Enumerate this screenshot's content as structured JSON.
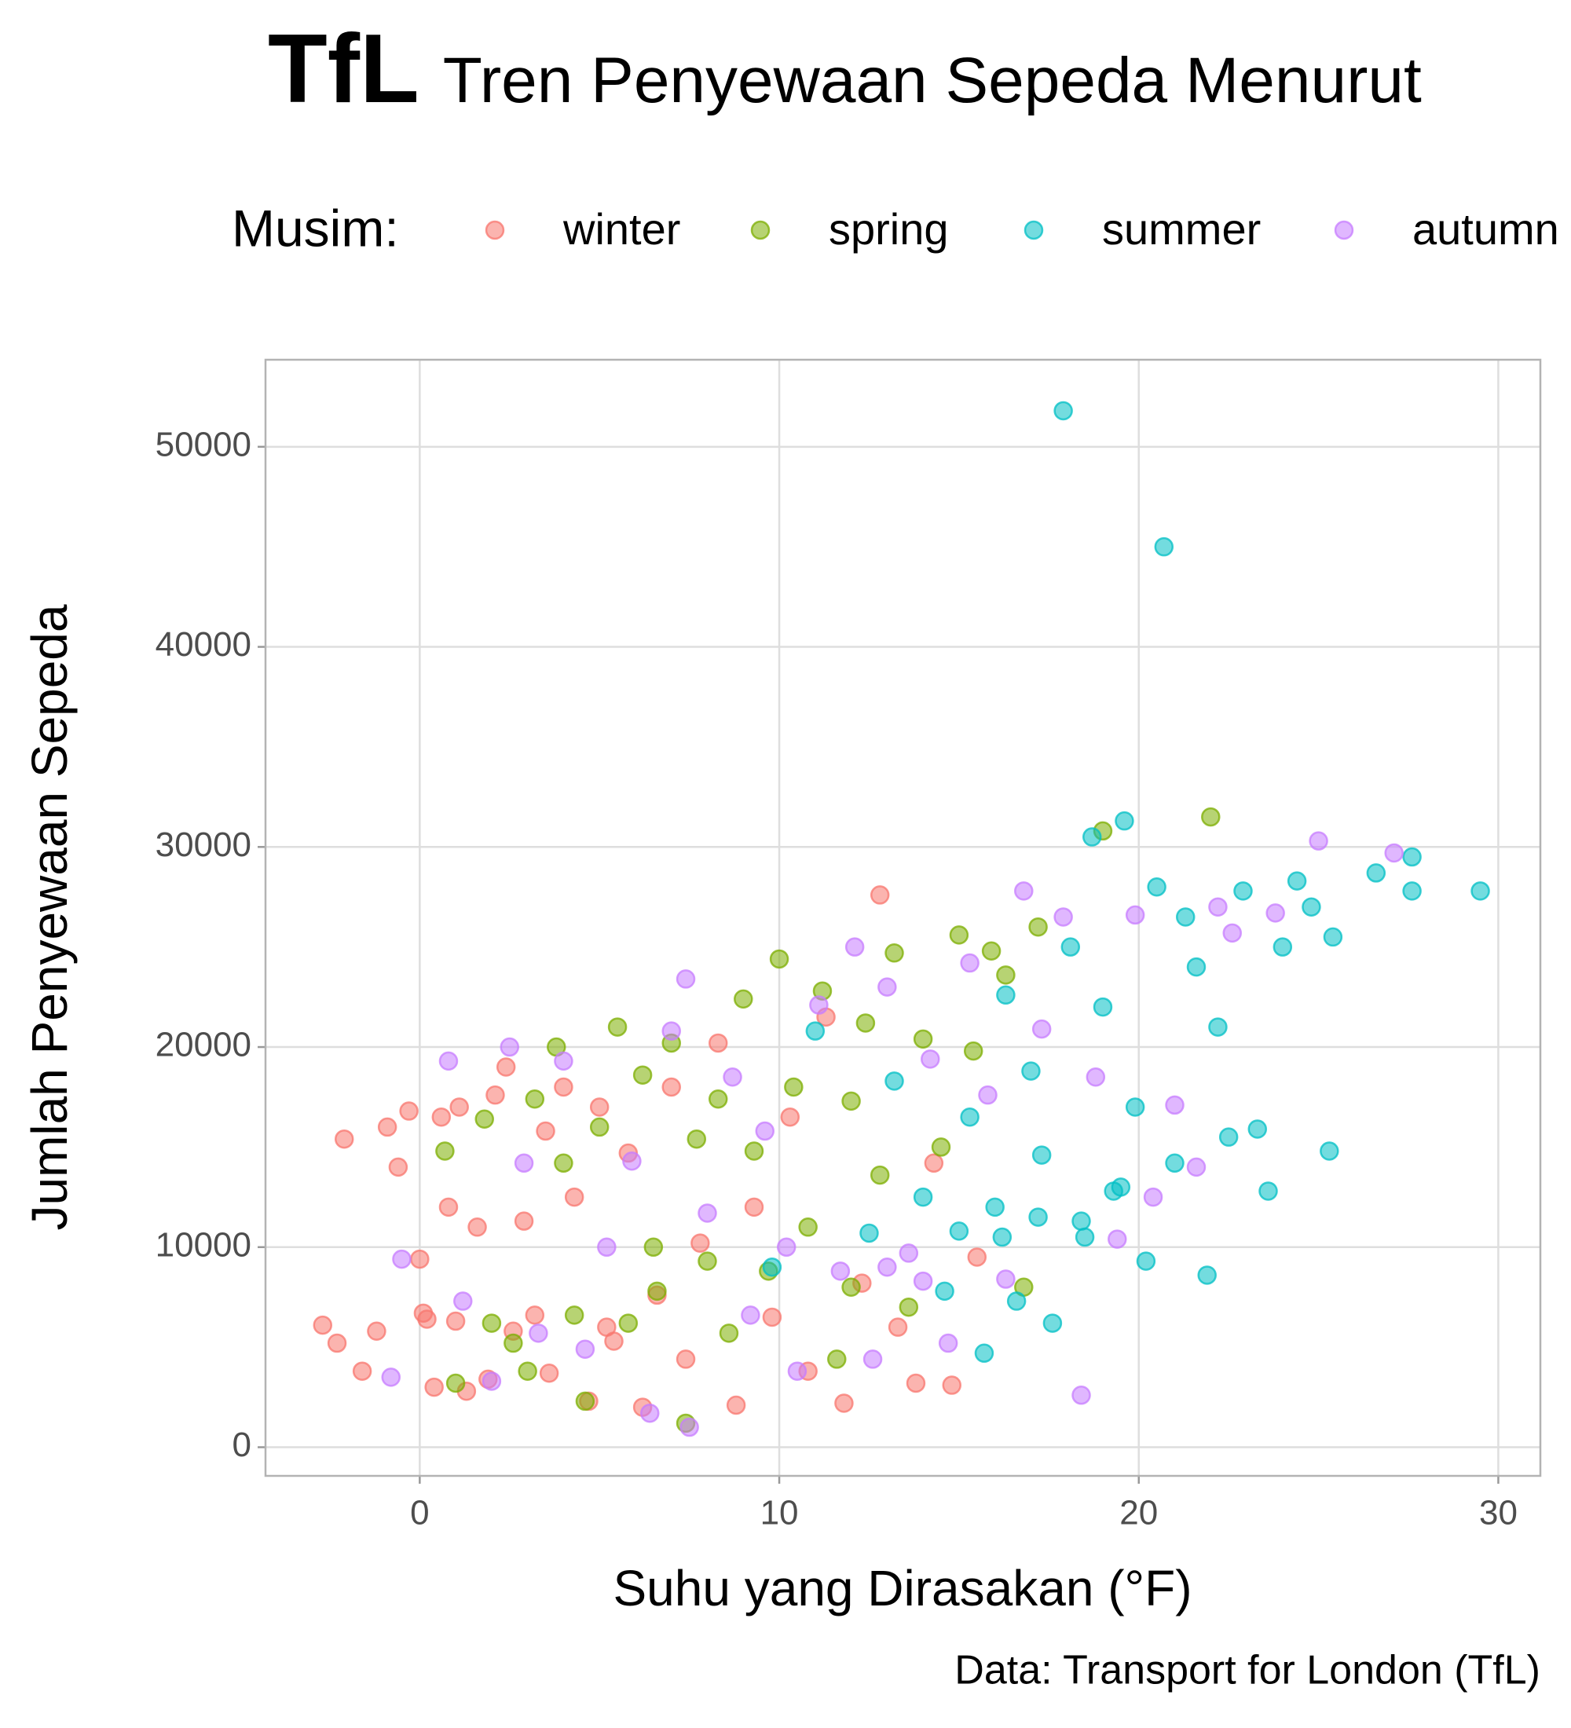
{
  "chart_data": {
    "type": "scatter",
    "title": "TfL",
    "subtitle": "Tren Penyewaan Sepeda Menurut",
    "legend_title": "Musim:",
    "legend_position": "top",
    "x_label": "Suhu yang Dirasakan (°F)",
    "y_label": "Jumlah Penyewaan Sepeda",
    "caption": "Data: Transport for London (TfL)",
    "xlim": [
      -4.29,
      31.17
    ],
    "ylim": [
      -1432,
      54350
    ],
    "xticks": [
      0,
      10,
      20,
      30
    ],
    "yticks": [
      0,
      10000,
      20000,
      30000,
      40000,
      50000
    ],
    "grid": true,
    "series": [
      {
        "name": "winter",
        "color": "#F8766D",
        "x": [
          -2.7,
          -2.3,
          -2.1,
          -1.6,
          -1.2,
          -0.9,
          -0.6,
          -0.3,
          0,
          0.2,
          0.4,
          0.6,
          0.8,
          1.1,
          1.3,
          1.6,
          1.9,
          2.1,
          2.4,
          2.6,
          2.9,
          3.2,
          3.6,
          4,
          4.3,
          4.7,
          5,
          5.4,
          5.8,
          6.2,
          6.6,
          7,
          7.4,
          7.8,
          8.3,
          8.8,
          9.3,
          9.8,
          10.3,
          10.8,
          11.3,
          11.8,
          12.3,
          12.8,
          13.3,
          13.8,
          14.3,
          14.8,
          15.5,
          5.2,
          3.5,
          1,
          0.1
        ],
        "values": [
          6100,
          5200,
          15400,
          3800,
          5800,
          16000,
          14000,
          16800,
          9400,
          6400,
          3000,
          16500,
          12000,
          17000,
          2800,
          11000,
          3400,
          17600,
          19000,
          5800,
          11300,
          6600,
          3700,
          18000,
          12500,
          2300,
          17000,
          5300,
          14700,
          2000,
          7600,
          18000,
          4400,
          10200,
          20200,
          2100,
          12000,
          6500,
          16500,
          3800,
          21500,
          2200,
          8200,
          27600,
          6000,
          3200,
          14200,
          3100,
          9500,
          6000,
          15800,
          6300,
          6700
        ]
      },
      {
        "name": "spring",
        "color": "#7CAE00",
        "x": [
          0.7,
          1,
          1.8,
          2,
          2.6,
          3,
          3.2,
          3.8,
          4,
          4.3,
          4.6,
          5,
          5.5,
          5.8,
          6.2,
          6.6,
          7,
          7.4,
          7.7,
          8,
          8.3,
          8.6,
          9,
          9.3,
          9.7,
          10,
          10.4,
          10.8,
          11.2,
          11.6,
          12,
          12.4,
          12.8,
          13.2,
          13.6,
          14,
          14.5,
          15,
          15.4,
          15.9,
          16.3,
          16.8,
          17.2,
          19,
          22,
          12,
          6.5
        ],
        "values": [
          14800,
          3200,
          16400,
          6200,
          5200,
          3800,
          17400,
          20000,
          14200,
          6600,
          2300,
          16000,
          21000,
          6200,
          18600,
          7800,
          20200,
          1200,
          15400,
          9300,
          17400,
          5700,
          22400,
          14800,
          8800,
          24400,
          18000,
          11000,
          22800,
          4400,
          17300,
          21200,
          13600,
          24700,
          7000,
          20400,
          15000,
          25600,
          19800,
          24800,
          23600,
          8000,
          26000,
          30800,
          31500,
          8000,
          10000
        ]
      },
      {
        "name": "summer",
        "color": "#00BFC4",
        "x": [
          9.8,
          11,
          12.5,
          13.2,
          14,
          14.6,
          15,
          15.3,
          15.7,
          16,
          16.3,
          16.6,
          17,
          17.3,
          17.6,
          17.9,
          18.1,
          18.4,
          18.7,
          19,
          19.3,
          19.6,
          19.9,
          20.2,
          20.5,
          20.7,
          21,
          21.3,
          21.6,
          21.9,
          22.2,
          22.5,
          22.9,
          23.3,
          23.6,
          24,
          24.4,
          24.8,
          25.3,
          25.4,
          26.6,
          27.6,
          27.6,
          29.5,
          17.2,
          18.5,
          19.5,
          16.2
        ],
        "values": [
          9000,
          20800,
          10700,
          18300,
          12500,
          7800,
          10800,
          16500,
          4700,
          12000,
          22600,
          7300,
          18800,
          14600,
          6200,
          51800,
          25000,
          11300,
          30500,
          22000,
          12800,
          31300,
          17000,
          9300,
          28000,
          45000,
          14200,
          26500,
          24000,
          8600,
          21000,
          15500,
          27800,
          15900,
          12800,
          25000,
          28300,
          27000,
          14800,
          25500,
          28700,
          29500,
          27800,
          27800,
          11500,
          10500,
          13000,
          10500
        ]
      },
      {
        "name": "autumn",
        "color": "#C77CFF",
        "x": [
          -0.8,
          -0.5,
          0.8,
          1.2,
          2,
          2.5,
          2.9,
          3.3,
          4,
          4.6,
          5.2,
          5.9,
          6.4,
          7,
          7.4,
          7.5,
          8,
          8.7,
          9.2,
          9.6,
          10.2,
          10.5,
          11.1,
          11.7,
          12.1,
          12.6,
          13,
          13.6,
          14.2,
          14.7,
          15.3,
          15.8,
          16.3,
          16.8,
          17.3,
          17.9,
          18.4,
          18.8,
          19.4,
          19.9,
          20.4,
          21,
          21.6,
          22.2,
          22.6,
          23.8,
          25,
          27.1,
          14,
          13
        ],
        "values": [
          3500,
          9400,
          19300,
          7300,
          3300,
          20000,
          14200,
          5700,
          19300,
          4900,
          10000,
          14300,
          1700,
          20800,
          23400,
          1000,
          11700,
          18500,
          6600,
          15800,
          10000,
          3800,
          22100,
          8800,
          25000,
          4400,
          23000,
          9700,
          19400,
          5200,
          24200,
          17600,
          8400,
          27800,
          20900,
          26500,
          2600,
          18500,
          10400,
          26600,
          12500,
          17100,
          14000,
          27000,
          25700,
          26700,
          30300,
          29700,
          8300,
          9000
        ]
      }
    ]
  }
}
